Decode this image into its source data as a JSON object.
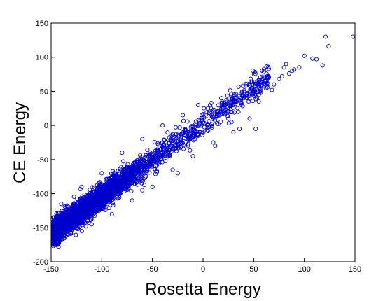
{
  "chart_data": {
    "type": "scatter",
    "title": "",
    "xlabel": "Rosetta Energy",
    "ylabel": "CE Energy",
    "xlim": [
      -150,
      150
    ],
    "ylim": [
      -200,
      150
    ],
    "xticks": [
      -150,
      -100,
      -50,
      0,
      50,
      100,
      150
    ],
    "yticks": [
      -200,
      -150,
      -100,
      -50,
      0,
      50,
      100,
      150
    ],
    "xtick_labels": [
      "-150",
      "-100",
      "-50",
      "0",
      "50",
      "100",
      "150"
    ],
    "ytick_labels": [
      "-200",
      "-150",
      "-100",
      "-50",
      "0",
      "50",
      "100",
      "150"
    ],
    "grid": false,
    "marker": "open-circle",
    "marker_color": "#0000cc",
    "series": [
      {
        "trend": {
          "slope": 1.07,
          "intercept": 2,
          "spread": 9,
          "x_range": [
            -148,
            65
          ]
        },
        "points": [
          [
            -148,
            -167
          ],
          [
            -147,
            -160
          ],
          [
            -145,
            -150
          ],
          [
            -140,
            -158
          ],
          [
            -135,
            -145
          ],
          [
            -130,
            -140
          ],
          [
            -125,
            -125
          ],
          [
            -120,
            -128
          ],
          [
            -115,
            -104
          ],
          [
            -110,
            -118
          ],
          [
            -105,
            -95
          ],
          [
            -100,
            -108
          ],
          [
            -95,
            -88
          ],
          [
            -90,
            -80
          ],
          [
            -85,
            -92
          ],
          [
            -80,
            -70
          ],
          [
            -75,
            -78
          ],
          [
            -70,
            -60
          ],
          [
            -65,
            -66
          ],
          [
            -60,
            -52
          ],
          [
            -55,
            -36
          ],
          [
            -50,
            -55
          ],
          [
            -45,
            -40
          ],
          [
            -40,
            -25
          ],
          [
            -35,
            -38
          ],
          [
            -30,
            -18
          ],
          [
            -25,
            -30
          ],
          [
            -20,
            -5
          ],
          [
            -15,
            -20
          ],
          [
            -10,
            -2
          ],
          [
            -5,
            -15
          ],
          [
            0,
            5
          ],
          [
            5,
            -8
          ],
          [
            10,
            12
          ],
          [
            15,
            2
          ],
          [
            20,
            25
          ],
          [
            25,
            10
          ],
          [
            30,
            30
          ],
          [
            35,
            20
          ],
          [
            40,
            40
          ],
          [
            45,
            35
          ],
          [
            50,
            50
          ],
          [
            55,
            45
          ],
          [
            60,
            62
          ],
          [
            62,
            55
          ],
          [
            65,
            70
          ],
          [
            68,
            52
          ],
          [
            70,
            60
          ],
          [
            75,
            68
          ],
          [
            78,
            72
          ],
          [
            80,
            85
          ],
          [
            82,
            90
          ],
          [
            85,
            76
          ],
          [
            88,
            80
          ],
          [
            90,
            82
          ],
          [
            95,
            85
          ],
          [
            100,
            102
          ],
          [
            108,
            98
          ],
          [
            112,
            97
          ],
          [
            118,
            88
          ],
          [
            121,
            130
          ],
          [
            124,
            116
          ],
          [
            148,
            130
          ],
          [
            12,
            -30
          ],
          [
            36,
            -5
          ],
          [
            52,
            -5
          ],
          [
            55,
            35
          ],
          [
            46,
            10
          ],
          [
            -5,
            30
          ],
          [
            -20,
            15
          ],
          [
            -40,
            0
          ],
          [
            -60,
            -20
          ],
          [
            -80,
            -40
          ],
          [
            -100,
            -70
          ],
          [
            -120,
            -90
          ],
          [
            -140,
            -115
          ],
          [
            -110,
            -145
          ],
          [
            -90,
            -130
          ],
          [
            -70,
            -110
          ],
          [
            -50,
            -90
          ],
          [
            -30,
            -65
          ],
          [
            -10,
            -45
          ],
          [
            10,
            -25
          ],
          [
            30,
            -10
          ],
          [
            -60,
            -95
          ],
          [
            -25,
            -70
          ],
          [
            18,
            40
          ],
          [
            42,
            58
          ]
        ]
      }
    ]
  }
}
